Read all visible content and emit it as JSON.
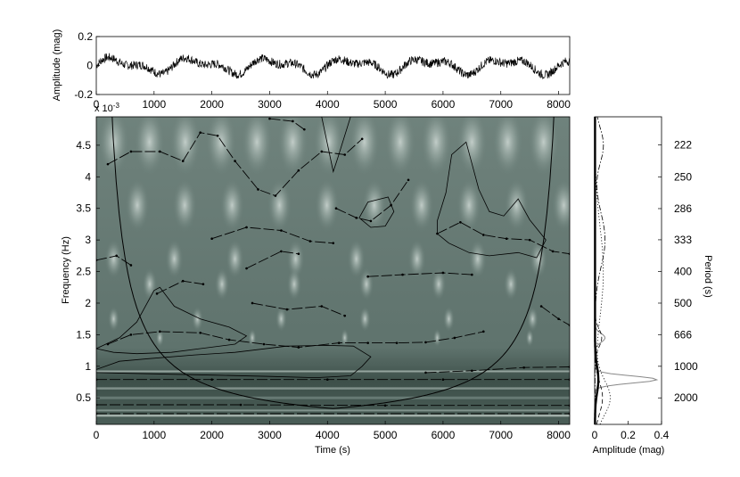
{
  "chart_data": [
    {
      "type": "line",
      "panel": "light-curve",
      "ylabel": "Amplitude (mag)",
      "xlim": [
        0,
        8192
      ],
      "ylim": [
        -0.2,
        0.2
      ],
      "x_ticks": [
        "0",
        "1000",
        "2000",
        "3000",
        "4000",
        "5000",
        "6000",
        "7000",
        "8000"
      ],
      "y_ticks": [
        "0.2",
        "0",
        "-0.2"
      ],
      "signal": {
        "n_points": 1200,
        "noise_amplitude": 0.03,
        "sinusoids": [
          {
            "amplitude": 0.04,
            "period_s": 1350
          },
          {
            "amplitude": 0.025,
            "period_s": 660
          }
        ]
      }
    },
    {
      "type": "heatmap",
      "panel": "wavelet-spectrogram",
      "xlabel": "Time (s)",
      "ylabel": "Frequency (Hz)",
      "axis_exponent": "x 10",
      "axis_exponent_power": "-3",
      "xlim": [
        0,
        8192
      ],
      "ylim": [
        0.08,
        4.95
      ],
      "x_ticks": [
        "0",
        "1000",
        "2000",
        "3000",
        "4000",
        "5000",
        "6000",
        "7000",
        "8000"
      ],
      "y_ticks": [
        "0.5",
        "1",
        "1.5",
        "2",
        "2.5",
        "3",
        "3.5",
        "4",
        "4.5"
      ],
      "colors": {
        "background": "#6a7e78",
        "bright": "#dfe9e4",
        "dark": "#33443e",
        "ridge": "#000000"
      },
      "cone_of_influence": {
        "apex_time": 4096,
        "apex_freq": 0.33,
        "edge_freq_max": 4.95
      },
      "ridges": [
        [
          [
            0,
            0.79
          ],
          [
            2000,
            0.79
          ],
          [
            4000,
            0.79
          ],
          [
            6000,
            0.79
          ],
          [
            8192,
            0.79
          ]
        ],
        [
          [
            0,
            0.39
          ],
          [
            2500,
            0.39
          ],
          [
            5000,
            0.38
          ],
          [
            8192,
            0.38
          ]
        ],
        [
          [
            0,
            0.25
          ],
          [
            8192,
            0.25
          ]
        ],
        [
          [
            5700,
            0.9
          ],
          [
            6500,
            0.93
          ],
          [
            7400,
            0.98
          ],
          [
            8192,
            0.99
          ]
        ],
        [
          [
            200,
            1.35
          ],
          [
            600,
            1.5
          ],
          [
            1100,
            1.55
          ],
          [
            1800,
            1.53
          ],
          [
            2300,
            1.42
          ],
          [
            2900,
            1.35
          ],
          [
            3500,
            1.3
          ],
          [
            4200,
            1.37
          ],
          [
            4700,
            1.37
          ],
          [
            5200,
            1.37
          ],
          [
            5700,
            1.38
          ],
          [
            6200,
            1.45
          ],
          [
            6700,
            1.55
          ]
        ],
        [
          [
            0,
            2.68
          ],
          [
            350,
            2.75
          ],
          [
            600,
            2.6
          ]
        ],
        [
          [
            1050,
            2.15
          ],
          [
            1500,
            2.35
          ],
          [
            1850,
            2.3
          ]
        ],
        [
          [
            2700,
            2.0
          ],
          [
            3300,
            1.9
          ],
          [
            3900,
            1.95
          ],
          [
            4300,
            1.8
          ]
        ],
        [
          [
            2600,
            2.55
          ],
          [
            3200,
            2.82
          ],
          [
            3500,
            2.78
          ]
        ],
        [
          [
            4700,
            2.42
          ],
          [
            5300,
            2.45
          ],
          [
            6000,
            2.48
          ],
          [
            6500,
            2.45
          ]
        ],
        [
          [
            2000,
            3.02
          ],
          [
            2600,
            3.2
          ],
          [
            3200,
            3.15
          ],
          [
            3700,
            2.98
          ],
          [
            4100,
            2.95
          ]
        ],
        [
          [
            200,
            4.2
          ],
          [
            600,
            4.4
          ],
          [
            1100,
            4.4
          ],
          [
            1500,
            4.25
          ],
          [
            1800,
            4.7
          ],
          [
            2100,
            4.65
          ],
          [
            2400,
            4.25
          ],
          [
            2800,
            3.8
          ],
          [
            3100,
            3.7
          ],
          [
            3500,
            4.1
          ],
          [
            3900,
            4.4
          ],
          [
            4300,
            4.35
          ],
          [
            4600,
            4.6
          ]
        ],
        [
          [
            4150,
            3.5
          ],
          [
            4500,
            3.35
          ],
          [
            4750,
            3.3
          ],
          [
            5100,
            3.55
          ],
          [
            5400,
            3.95
          ]
        ],
        [
          [
            3000,
            4.92
          ],
          [
            3400,
            4.88
          ],
          [
            3600,
            4.75
          ]
        ],
        [
          [
            5900,
            3.1
          ],
          [
            6300,
            3.28
          ],
          [
            6700,
            3.08
          ],
          [
            7100,
            3.02
          ],
          [
            7500,
            3.0
          ],
          [
            7900,
            2.82
          ],
          [
            8192,
            2.78
          ]
        ],
        [
          [
            7700,
            1.95
          ],
          [
            8000,
            1.75
          ],
          [
            8192,
            1.65
          ]
        ]
      ],
      "significance_contours": [
        [
          [
            0,
            1.28
          ],
          [
            400,
            1.45
          ],
          [
            700,
            1.7
          ],
          [
            1000,
            2.2
          ],
          [
            1100,
            2.25
          ],
          [
            1350,
            1.95
          ],
          [
            1800,
            1.75
          ],
          [
            2300,
            1.62
          ],
          [
            2600,
            1.48
          ],
          [
            2400,
            1.35
          ],
          [
            1800,
            1.28
          ],
          [
            1300,
            1.22
          ],
          [
            700,
            1.2
          ],
          [
            300,
            1.22
          ],
          [
            0,
            1.28
          ]
        ],
        [
          [
            0,
            0.95
          ],
          [
            400,
            1.08
          ],
          [
            900,
            1.12
          ],
          [
            1700,
            1.18
          ],
          [
            2400,
            1.22
          ],
          [
            3300,
            1.32
          ],
          [
            4000,
            1.33
          ],
          [
            4450,
            1.32
          ],
          [
            4750,
            1.15
          ],
          [
            4600,
            1.0
          ],
          [
            4400,
            0.85
          ],
          [
            3800,
            0.82
          ],
          [
            3000,
            0.84
          ],
          [
            2000,
            0.86
          ],
          [
            1000,
            0.88
          ],
          [
            0,
            0.9
          ]
        ],
        [
          [
            3900,
            4.95
          ],
          [
            4050,
            4.3
          ],
          [
            4100,
            4.08
          ],
          [
            4180,
            4.3
          ],
          [
            4400,
            4.95
          ]
        ],
        [
          [
            4550,
            3.35
          ],
          [
            4700,
            3.6
          ],
          [
            5050,
            3.68
          ],
          [
            5150,
            3.45
          ],
          [
            5000,
            3.22
          ],
          [
            4750,
            3.2
          ],
          [
            4550,
            3.35
          ]
        ],
        [
          [
            5900,
            3.3
          ],
          [
            6050,
            3.75
          ],
          [
            6150,
            4.35
          ],
          [
            6400,
            4.55
          ],
          [
            6620,
            3.8
          ],
          [
            6800,
            3.45
          ],
          [
            7050,
            3.38
          ],
          [
            7300,
            3.65
          ],
          [
            7500,
            3.32
          ],
          [
            7780,
            3.0
          ],
          [
            7620,
            2.72
          ],
          [
            7300,
            2.8
          ],
          [
            6800,
            2.75
          ],
          [
            6450,
            2.8
          ],
          [
            6100,
            2.95
          ],
          [
            5900,
            3.1
          ],
          [
            5900,
            3.3
          ]
        ]
      ]
    },
    {
      "type": "line",
      "panel": "global-wavelet-spectrum",
      "xlabel": "Amplitude (mag)",
      "ylabel": "Period (s)",
      "xlim": [
        0,
        0.4
      ],
      "x_ticks": [
        "0",
        "0.2",
        "0.4"
      ],
      "period_ticks": [
        "222",
        "250",
        "286",
        "333",
        "400",
        "500",
        "666",
        "1000",
        "2000"
      ],
      "series": [
        {
          "style": "solid-gray",
          "peaks": [
            {
              "freq": 0.79,
              "amp": 0.37,
              "width": 0.08
            },
            {
              "freq": 1.45,
              "amp": 0.06,
              "width": 0.1
            }
          ]
        },
        {
          "style": "solid-black",
          "peaks": [
            {
              "freq": 0.79,
              "amp": 0.02,
              "width": 0.3
            }
          ]
        },
        {
          "style": "dashed",
          "peaks": [
            {
              "freq": 0.5,
              "amp": 0.045,
              "width": 0.35
            },
            {
              "freq": 1.45,
              "amp": 0.04,
              "width": 0.2
            }
          ]
        },
        {
          "style": "dash-dot",
          "peaks": [
            {
              "freq": 3.0,
              "amp": 0.06,
              "width": 0.6
            },
            {
              "freq": 4.5,
              "amp": 0.05,
              "width": 0.4
            }
          ]
        },
        {
          "style": "dotted",
          "peaks": [
            {
              "freq": 0.5,
              "amp": 0.09,
              "width": 0.4
            },
            {
              "freq": 2.5,
              "amp": 0.05,
              "width": 1.0
            }
          ]
        }
      ]
    }
  ]
}
